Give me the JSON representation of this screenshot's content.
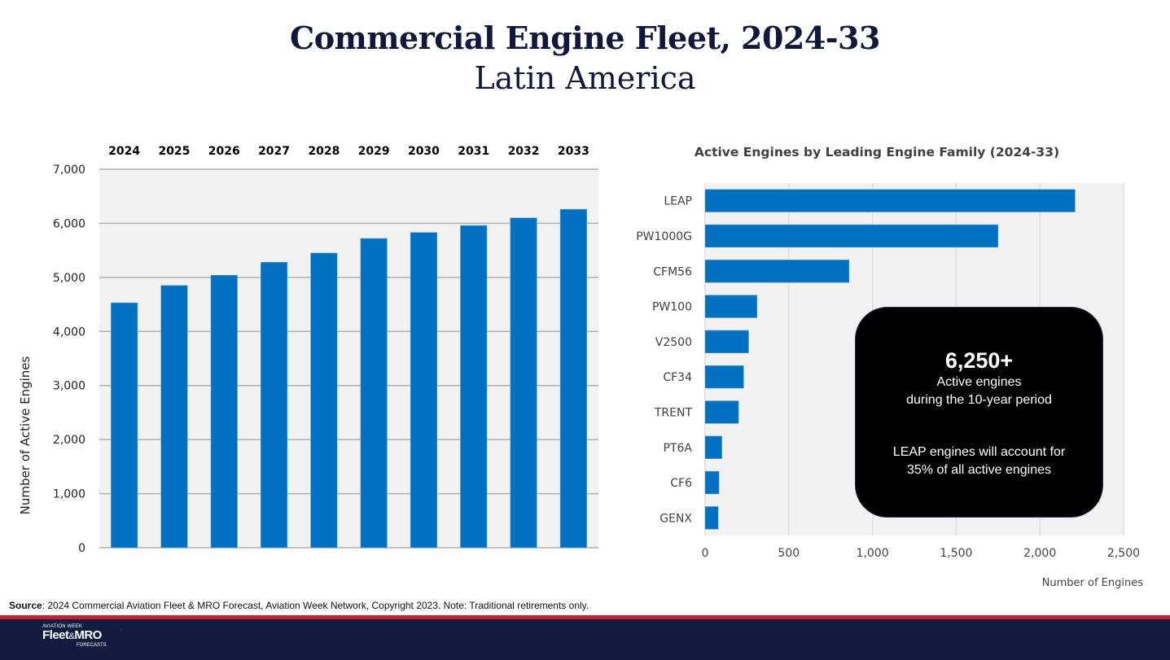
{
  "header": {
    "title": "Commercial Engine Fleet, 2024-33",
    "subtitle": "Latin America"
  },
  "chart_data": [
    {
      "type": "bar",
      "title": "",
      "categories": [
        "2024",
        "2025",
        "2026",
        "2027",
        "2028",
        "2029",
        "2030",
        "2031",
        "2032",
        "2033"
      ],
      "values": [
        4530,
        4850,
        5040,
        5280,
        5450,
        5720,
        5830,
        5960,
        6100,
        6260
      ],
      "xlabel": "",
      "ylabel": "Number of Active Engines",
      "ylim": [
        0,
        7000
      ],
      "yticks": [
        0,
        1000,
        2000,
        3000,
        4000,
        5000,
        6000,
        7000
      ],
      "ytick_labels": [
        "0",
        "1,000",
        "2,000",
        "3,000",
        "4,000",
        "5,000",
        "6,000",
        "7,000"
      ],
      "category_labels_position": "top",
      "grid": true,
      "bar_color": "#0070c0",
      "plot_background": "#f2f2f2"
    },
    {
      "type": "bar",
      "orientation": "horizontal",
      "title": "Active Engines by Leading Engine Family (2024-33)",
      "categories": [
        "LEAP",
        "PW1000G",
        "CFM56",
        "PW100",
        "V2500",
        "CF34",
        "TRENT",
        "PT6A",
        "CF6",
        "GENX"
      ],
      "values": [
        2210,
        1750,
        860,
        310,
        260,
        230,
        200,
        100,
        83,
        78
      ],
      "xlabel": "Number of Engines",
      "ylabel": "",
      "xlim": [
        0,
        2500
      ],
      "xticks": [
        0,
        500,
        1000,
        1500,
        2000,
        2500
      ],
      "xtick_labels": [
        "0",
        "500",
        "1,000",
        "1,500",
        "2,000",
        "2,500"
      ],
      "grid": true,
      "bar_color": "#0070c0",
      "plot_background": "#f2f2f2"
    }
  ],
  "callout": {
    "headline": "6,250+",
    "line1": "Active engines",
    "line2": "during the 10-year period",
    "line3": "LEAP engines will account for",
    "line4": "35% of all active engines"
  },
  "source": {
    "label": "Source",
    "text": ": 2024 Commercial Aviation Fleet & MRO Forecast, Aviation Week Network, Copyright 2023. Note: Traditional retirements only."
  },
  "footer": {
    "logo_top": "AVIATION WEEK",
    "logo_brand_a": "Fleet",
    "logo_brand_amp": "&",
    "logo_brand_b": "MRO",
    "logo_bottom": "FORECASTS",
    "colors": {
      "bar": "#111c40",
      "stripe": "#c8202f"
    }
  }
}
